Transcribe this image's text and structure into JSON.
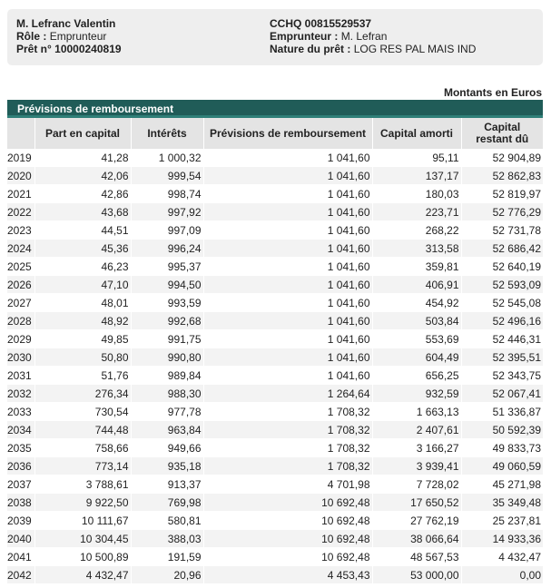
{
  "header": {
    "left": {
      "name": "M. Lefranc Valentin",
      "role_label": "Rôle :",
      "role_value": "Emprunteur",
      "loan_label": "Prêt n° 10000240819"
    },
    "right": {
      "account": "CCHQ 00815529537",
      "borrower_label": "Emprunteur :",
      "borrower_value": "M. Lefran",
      "nature_label": "Nature du prêt :",
      "nature_value": "LOG RES PAL MAIS IND"
    }
  },
  "units": "Montants en Euros",
  "section_title": "Prévisions de remboursement",
  "table": {
    "columns": [
      "",
      "Part en capital",
      "Intérêts",
      "Prévisions de remboursement",
      "Capital amorti",
      "Capital restant dû"
    ],
    "rows": [
      [
        "2019",
        "41,28",
        "1 000,32",
        "1 041,60",
        "95,11",
        "52 904,89"
      ],
      [
        "2020",
        "42,06",
        "999,54",
        "1 041,60",
        "137,17",
        "52 862,83"
      ],
      [
        "2021",
        "42,86",
        "998,74",
        "1 041,60",
        "180,03",
        "52 819,97"
      ],
      [
        "2022",
        "43,68",
        "997,92",
        "1 041,60",
        "223,71",
        "52 776,29"
      ],
      [
        "2023",
        "44,51",
        "997,09",
        "1 041,60",
        "268,22",
        "52 731,78"
      ],
      [
        "2024",
        "45,36",
        "996,24",
        "1 041,60",
        "313,58",
        "52 686,42"
      ],
      [
        "2025",
        "46,23",
        "995,37",
        "1 041,60",
        "359,81",
        "52 640,19"
      ],
      [
        "2026",
        "47,10",
        "994,50",
        "1 041,60",
        "406,91",
        "52 593,09"
      ],
      [
        "2027",
        "48,01",
        "993,59",
        "1 041,60",
        "454,92",
        "52 545,08"
      ],
      [
        "2028",
        "48,92",
        "992,68",
        "1 041,60",
        "503,84",
        "52 496,16"
      ],
      [
        "2029",
        "49,85",
        "991,75",
        "1 041,60",
        "553,69",
        "52 446,31"
      ],
      [
        "2030",
        "50,80",
        "990,80",
        "1 041,60",
        "604,49",
        "52 395,51"
      ],
      [
        "2031",
        "51,76",
        "989,84",
        "1 041,60",
        "656,25",
        "52 343,75"
      ],
      [
        "2032",
        "276,34",
        "988,30",
        "1 264,64",
        "932,59",
        "52 067,41"
      ],
      [
        "2033",
        "730,54",
        "977,78",
        "1 708,32",
        "1 663,13",
        "51 336,87"
      ],
      [
        "2034",
        "744,48",
        "963,84",
        "1 708,32",
        "2 407,61",
        "50 592,39"
      ],
      [
        "2035",
        "758,66",
        "949,66",
        "1 708,32",
        "3 166,27",
        "49 833,73"
      ],
      [
        "2036",
        "773,14",
        "935,18",
        "1 708,32",
        "3 939,41",
        "49 060,59"
      ],
      [
        "2037",
        "3 788,61",
        "913,37",
        "4 701,98",
        "7 728,02",
        "45 271,98"
      ],
      [
        "2038",
        "9 922,50",
        "769,98",
        "10 692,48",
        "17 650,52",
        "35 349,48"
      ],
      [
        "2039",
        "10 111,67",
        "580,81",
        "10 692,48",
        "27 762,19",
        "25 237,81"
      ],
      [
        "2040",
        "10 304,45",
        "388,03",
        "10 692,48",
        "38 066,64",
        "14 933,36"
      ],
      [
        "2041",
        "10 500,89",
        "191,59",
        "10 692,48",
        "48 567,53",
        "4 432,47"
      ],
      [
        "2042",
        "4 432,47",
        "20,96",
        "4 453,43",
        "53 000,00",
        "0,00"
      ]
    ]
  }
}
